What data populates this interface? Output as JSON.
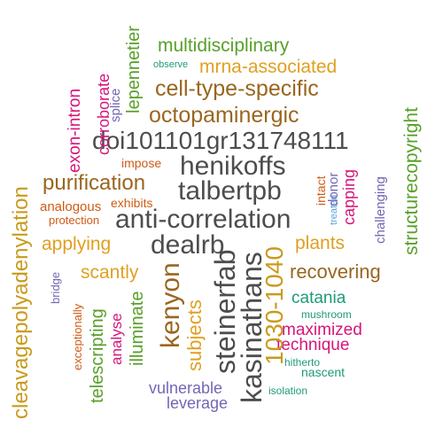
{
  "palette": {
    "dark_gray": "#4d4d4d",
    "brown": "#9a661f",
    "olive": "#c99a1c",
    "orange": "#e0a020",
    "green": "#58a02a",
    "magenta": "#d6157a",
    "teal": "#1e9a78",
    "purple": "#7466b4",
    "rust": "#d05a14"
  },
  "words": [
    {
      "text": "doi101101gr131748111",
      "color": "#4d4d4d"
    },
    {
      "text": "anti-correlation",
      "color": "#4d4d4d"
    },
    {
      "text": "henikoffs",
      "color": "#4d4d4d"
    },
    {
      "text": "talbertpb",
      "color": "#4d4d4d"
    },
    {
      "text": "dealrb",
      "color": "#4d4d4d"
    },
    {
      "text": "kasinathans",
      "color": "#4d4d4d"
    },
    {
      "text": "steinerfab",
      "color": "#4d4d4d"
    },
    {
      "text": "octopaminergic",
      "color": "#9a661f"
    },
    {
      "text": "cell-type-specific",
      "color": "#9a661f"
    },
    {
      "text": "purification",
      "color": "#9a661f"
    },
    {
      "text": "recovering",
      "color": "#9a661f"
    },
    {
      "text": "kenyon",
      "color": "#9a661f"
    },
    {
      "text": "1030-1040",
      "color": "#c99a1c"
    },
    {
      "text": "cleavagepolyadenylation",
      "color": "#c99a1c"
    },
    {
      "text": "mrna-associated",
      "color": "#e0a020"
    },
    {
      "text": "applying",
      "color": "#e0a020"
    },
    {
      "text": "plants",
      "color": "#e0a020"
    },
    {
      "text": "scantly",
      "color": "#e0a020"
    },
    {
      "text": "subjects",
      "color": "#e0a020"
    },
    {
      "text": "multidisciplinary",
      "color": "#58a02a"
    },
    {
      "text": "lepennetier",
      "color": "#58a02a"
    },
    {
      "text": "structurecopyright",
      "color": "#58a02a"
    },
    {
      "text": "illuminate",
      "color": "#58a02a"
    },
    {
      "text": "telescripting",
      "color": "#58a02a"
    },
    {
      "text": "capping",
      "color": "#d6157a"
    },
    {
      "text": "maximized",
      "color": "#d6157a"
    },
    {
      "text": "technique",
      "color": "#d6157a"
    },
    {
      "text": "analyse",
      "color": "#d6157a"
    },
    {
      "text": "exon-intron",
      "color": "#d6157a"
    },
    {
      "text": "corroborate",
      "color": "#d6157a"
    },
    {
      "text": "catania",
      "color": "#1e9a78"
    },
    {
      "text": "mushroom",
      "color": "#1e9a78"
    },
    {
      "text": "nascent",
      "color": "#1e9a78"
    },
    {
      "text": "isolation",
      "color": "#1e9a78"
    },
    {
      "text": "observe",
      "color": "#1e9a78"
    },
    {
      "text": "hitherto",
      "color": "#1e9a78"
    },
    {
      "text": "vulnerable",
      "color": "#7466b4"
    },
    {
      "text": "leverage",
      "color": "#7466b4"
    },
    {
      "text": "splice",
      "color": "#7466b4"
    },
    {
      "text": "donor",
      "color": "#7466b4"
    },
    {
      "text": "challenging",
      "color": "#7466b4"
    },
    {
      "text": "bridge",
      "color": "#7466b4"
    },
    {
      "text": "treated",
      "color": "#5f9fd6"
    },
    {
      "text": "impose",
      "color": "#d05a14"
    },
    {
      "text": "exhibits",
      "color": "#d05a14"
    },
    {
      "text": "analogous",
      "color": "#d05a14"
    },
    {
      "text": "protection",
      "color": "#d05a14"
    },
    {
      "text": "intact",
      "color": "#d05a14"
    },
    {
      "text": "exceptionally",
      "color": "#d05a14"
    }
  ]
}
